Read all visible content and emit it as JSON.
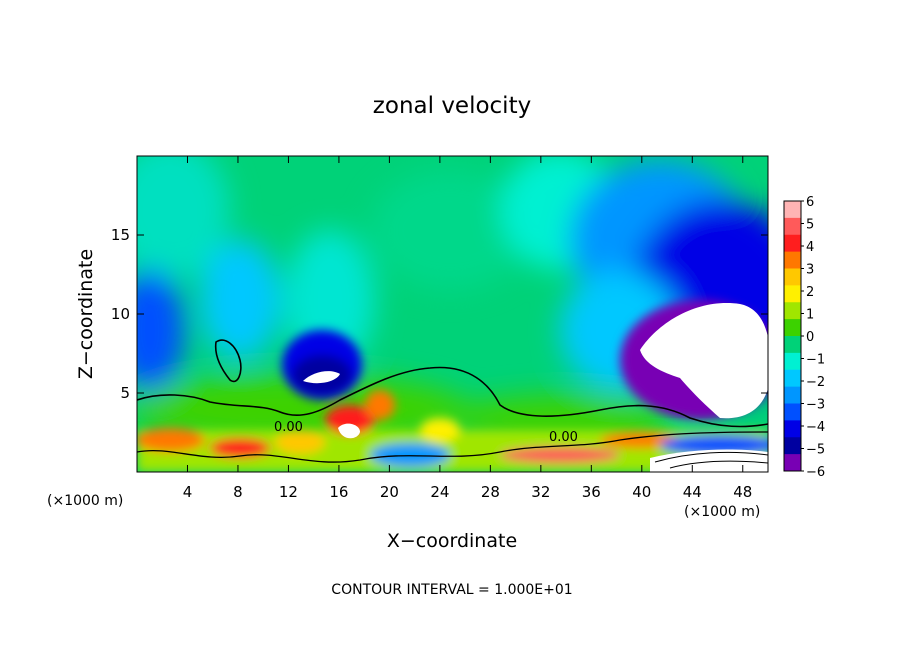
{
  "chart_data": {
    "type": "heatmap",
    "title": "zonal velocity",
    "xlabel": "X−coordinate",
    "ylabel": "Z−coordinate",
    "x_unit_label_left": "(×1000 m)",
    "x_unit_label_right": "(×1000 m)",
    "xlim": [
      0,
      50
    ],
    "ylim": [
      0,
      20
    ],
    "x_ticks": [
      4,
      8,
      12,
      16,
      20,
      24,
      28,
      32,
      36,
      40,
      44,
      48
    ],
    "y_ticks": [
      5,
      10,
      15
    ],
    "colorbar": {
      "levels": [
        6,
        5,
        4,
        3,
        2,
        1,
        0,
        -1,
        -2,
        -3,
        -4,
        -5,
        -6
      ],
      "labels": [
        "6",
        "5",
        "4",
        "3",
        "2",
        "1",
        "0",
        "−1",
        "−2",
        "−3",
        "−4",
        "−5",
        "−6"
      ],
      "colors": [
        "#ffb4b4",
        "#ff5a5a",
        "#ff1e1e",
        "#ff7800",
        "#ffc800",
        "#fff000",
        "#a0e600",
        "#3cd200",
        "#00d278",
        "#00f0d2",
        "#00c8ff",
        "#0096ff",
        "#0050ff",
        "#0000e6",
        "#0000a0",
        "#7800b4"
      ]
    },
    "contour_labels": [
      {
        "text": "0.00",
        "x": 10.8,
        "y": 2.7
      },
      {
        "text": "0.00",
        "x": 33.8,
        "y": 2.2
      }
    ],
    "footer": "CONTOUR INTERVAL = 1.000E+01"
  }
}
